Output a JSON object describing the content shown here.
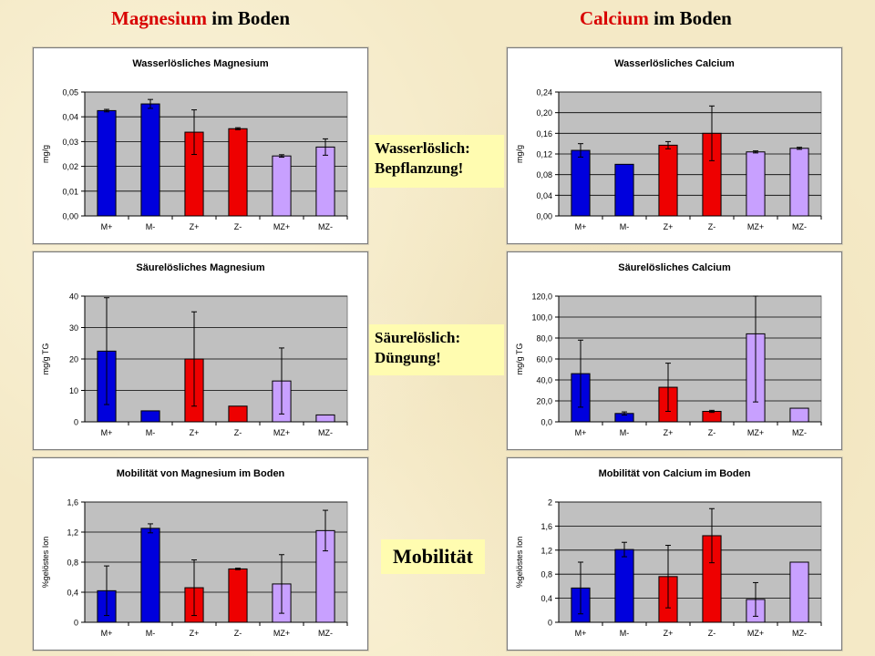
{
  "headers": {
    "left": {
      "accent": "Magnesium",
      "rest": " im Boden"
    },
    "right": {
      "accent": "Calcium",
      "rest": " im Boden"
    }
  },
  "notes": {
    "water": [
      "Wasserlöslich:",
      "Bepflanzung!"
    ],
    "acid": [
      "Säurelöslich:",
      "Düngung!"
    ],
    "mobility": "Mobilität"
  },
  "colors": {
    "Mplus": "#0000dd",
    "Mminus": "#0000dd",
    "Zplus": "#ee0000",
    "Zminus": "#ee0000",
    "MZplus": "#c8a0ff",
    "MZminus": "#c8a0ff",
    "plot_bg": "#c0c0c0"
  },
  "chart_data": [
    {
      "id": "mg-water",
      "type": "bar",
      "title": "Wasserlösliches Magnesium",
      "ylabel": "mg/g",
      "categories": [
        "M+",
        "M-",
        "Z+",
        "Z-",
        "MZ+",
        "MZ-"
      ],
      "values": [
        0.0425,
        0.0452,
        0.0338,
        0.0352,
        0.0242,
        0.0278
      ],
      "errors": [
        0.0005,
        0.0018,
        0.009,
        0.0004,
        0.0005,
        0.0033
      ],
      "ylim": [
        0,
        0.05
      ],
      "yticks": [
        "0,00",
        "0,01",
        "0,02",
        "0,03",
        "0,04",
        "0,05"
      ],
      "yticks_values": [
        0,
        0.01,
        0.02,
        0.03,
        0.04,
        0.05
      ]
    },
    {
      "id": "ca-water",
      "type": "bar",
      "title": "Wasserlösliches Calcium",
      "ylabel": "mg/g",
      "categories": [
        "M+",
        "M-",
        "Z+",
        "Z-",
        "MZ+",
        "MZ-"
      ],
      "values": [
        0.127,
        0.1,
        0.137,
        0.16,
        0.124,
        0.131
      ],
      "errors": [
        0.013,
        0.0,
        0.007,
        0.053,
        0.002,
        0.002
      ],
      "ylim": [
        0,
        0.24
      ],
      "yticks": [
        "0,00",
        "0,04",
        "0,08",
        "0,12",
        "0,16",
        "0,20",
        "0,24"
      ],
      "yticks_values": [
        0,
        0.04,
        0.08,
        0.12,
        0.16,
        0.2,
        0.24
      ]
    },
    {
      "id": "mg-acid",
      "type": "bar",
      "title": "Säurelösliches Magnesium",
      "ylabel": "mg/g TG",
      "categories": [
        "M+",
        "M-",
        "Z+",
        "Z-",
        "MZ+",
        "MZ-"
      ],
      "values": [
        22.5,
        3.5,
        20.0,
        5.0,
        13.0,
        2.2
      ],
      "errors": [
        17.0,
        0.0,
        15.0,
        0.0,
        10.5,
        0.0
      ],
      "ylim": [
        0,
        40
      ],
      "yticks": [
        "0",
        "10",
        "20",
        "30",
        "40"
      ],
      "yticks_values": [
        0,
        10,
        20,
        30,
        40
      ]
    },
    {
      "id": "ca-acid",
      "type": "bar",
      "title": "Säurelösliches Calcium",
      "ylabel": "mg/g TG",
      "categories": [
        "M+",
        "M-",
        "Z+",
        "Z-",
        "MZ+",
        "MZ-"
      ],
      "values": [
        46.0,
        8.0,
        33.0,
        10.0,
        84.0,
        13.0
      ],
      "errors": [
        32.0,
        1.5,
        23.0,
        1.0,
        65.0,
        0.0
      ],
      "ylim": [
        0,
        120
      ],
      "yticks": [
        "0,0",
        "20,0",
        "40,0",
        "60,0",
        "80,0",
        "100,0",
        "120,0"
      ],
      "yticks_values": [
        0,
        20,
        40,
        60,
        80,
        100,
        120
      ]
    },
    {
      "id": "mg-mob",
      "type": "bar",
      "title": "Mobilität von Magnesium im Boden",
      "ylabel": "%gelöstes Ion",
      "categories": [
        "M+",
        "M-",
        "Z+",
        "Z-",
        "MZ+",
        "MZ-"
      ],
      "values": [
        0.42,
        1.25,
        0.46,
        0.71,
        0.51,
        1.22
      ],
      "errors": [
        0.33,
        0.06,
        0.37,
        0.01,
        0.39,
        0.27
      ],
      "ylim": [
        0,
        1.6
      ],
      "yticks": [
        "0",
        "0,4",
        "0,8",
        "1,2",
        "1,6"
      ],
      "yticks_values": [
        0,
        0.4,
        0.8,
        1.2,
        1.6
      ]
    },
    {
      "id": "ca-mob",
      "type": "bar",
      "title": "Mobilität von Calcium im Boden",
      "ylabel": "%gelöstes Ion",
      "categories": [
        "M+",
        "M-",
        "Z+",
        "Z-",
        "MZ+",
        "MZ-"
      ],
      "values": [
        0.57,
        1.21,
        0.76,
        1.44,
        0.38,
        1.0
      ],
      "errors": [
        0.43,
        0.12,
        0.52,
        0.45,
        0.28,
        0.0
      ],
      "ylim": [
        0,
        2.0
      ],
      "yticks": [
        "0",
        "0,4",
        "0,8",
        "1,2",
        "1,6",
        "2"
      ],
      "yticks_values": [
        0,
        0.4,
        0.8,
        1.2,
        1.6,
        2.0
      ]
    }
  ]
}
